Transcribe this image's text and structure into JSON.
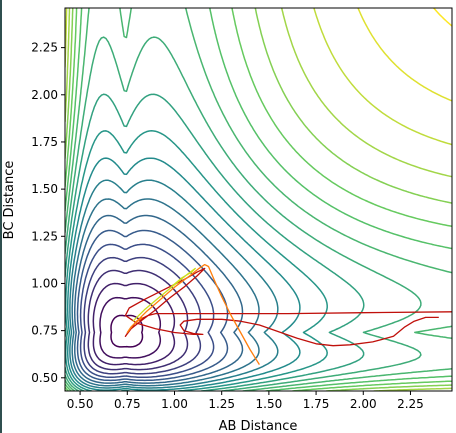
{
  "chart_data": {
    "type": "contour",
    "xlabel": "AB Distance",
    "ylabel": "BC Distance",
    "xlim": [
      0.42,
      2.47
    ],
    "ylim": [
      0.43,
      2.46
    ],
    "xticks": [
      "0.50",
      "0.75",
      "1.00",
      "1.25",
      "1.50",
      "1.75",
      "2.00",
      "2.25"
    ],
    "yticks": [
      "0.50",
      "0.75",
      "1.00",
      "1.25",
      "1.50",
      "1.75",
      "2.00",
      "2.25"
    ],
    "xtick_values": [
      0.5,
      0.75,
      1.0,
      1.25,
      1.5,
      1.75,
      2.0,
      2.25
    ],
    "ytick_values": [
      0.5,
      0.75,
      1.0,
      1.25,
      1.5,
      1.75,
      2.0,
      2.25
    ],
    "grid": false,
    "colormap": "viridis",
    "colormap_stops": [
      "#440154",
      "#3b528b",
      "#21918c",
      "#5ec962",
      "#fde725"
    ],
    "contour_levels": 22,
    "surface": {
      "kind": "two-channel potential (L-shaped valleys)",
      "valley_x": 0.74,
      "valley_y": 0.74,
      "well_depth": 1.0,
      "morse_a": 2.0,
      "transition_point": [
        0.85,
        0.85
      ]
    },
    "series": [
      {
        "color": "#c0100b",
        "points": [
          [
            2.4,
            0.82
          ],
          [
            2.33,
            0.82
          ],
          [
            2.27,
            0.8
          ],
          [
            2.22,
            0.77
          ],
          [
            2.16,
            0.72
          ],
          [
            2.05,
            0.69
          ],
          [
            1.93,
            0.675
          ],
          [
            1.84,
            0.67
          ],
          [
            1.75,
            0.68
          ],
          [
            1.65,
            0.71
          ],
          [
            1.55,
            0.745
          ],
          [
            1.45,
            0.78
          ],
          [
            1.35,
            0.8
          ],
          [
            1.25,
            0.81
          ],
          [
            1.12,
            0.81
          ],
          [
            1.05,
            0.8
          ],
          [
            1.03,
            0.78
          ],
          [
            1.05,
            0.75
          ],
          [
            1.1,
            0.735
          ],
          [
            1.15,
            0.73
          ],
          [
            1.1,
            0.73
          ],
          [
            1.0,
            0.74
          ],
          [
            0.9,
            0.76
          ],
          [
            0.8,
            0.79
          ],
          [
            0.74,
            0.83
          ],
          [
            0.76,
            0.87
          ],
          [
            0.85,
            0.92
          ],
          [
            0.95,
            0.97
          ],
          [
            1.05,
            1.02
          ],
          [
            1.12,
            1.06
          ],
          [
            1.16,
            1.08
          ],
          [
            1.12,
            1.04
          ],
          [
            1.05,
            0.98
          ],
          [
            0.97,
            0.92
          ],
          [
            0.9,
            0.86
          ],
          [
            0.82,
            0.8
          ],
          [
            0.77,
            0.76
          ],
          [
            0.74,
            0.72
          ],
          [
            0.76,
            0.75
          ],
          [
            0.8,
            0.8
          ],
          [
            0.86,
            0.83
          ],
          [
            0.9,
            0.84
          ],
          [
            1.0,
            0.84
          ],
          [
            1.2,
            0.84
          ],
          [
            1.6,
            0.84
          ],
          [
            2.0,
            0.845
          ],
          [
            2.47,
            0.85
          ]
        ]
      },
      {
        "color": "#ff7f0e",
        "points": [
          [
            1.45,
            0.57
          ],
          [
            1.4,
            0.65
          ],
          [
            1.35,
            0.74
          ],
          [
            1.3,
            0.83
          ],
          [
            1.25,
            0.93
          ],
          [
            1.21,
            1.02
          ],
          [
            1.18,
            1.09
          ],
          [
            1.16,
            1.1
          ],
          [
            1.13,
            1.08
          ],
          [
            1.08,
            1.04
          ],
          [
            1.0,
            0.98
          ],
          [
            0.92,
            0.91
          ],
          [
            0.85,
            0.85
          ],
          [
            0.8,
            0.8
          ],
          [
            0.77,
            0.77
          ],
          [
            0.75,
            0.74
          ],
          [
            0.78,
            0.78
          ],
          [
            0.83,
            0.82
          ]
        ]
      },
      {
        "color": "#ccdf1a",
        "points": [
          [
            0.78,
            0.8
          ],
          [
            0.84,
            0.86
          ],
          [
            0.9,
            0.91
          ],
          [
            0.96,
            0.96
          ],
          [
            1.02,
            1.01
          ],
          [
            1.07,
            1.05
          ],
          [
            1.11,
            1.08
          ],
          [
            1.09,
            1.06
          ],
          [
            1.04,
            1.03
          ],
          [
            0.98,
            0.98
          ]
        ]
      }
    ]
  }
}
